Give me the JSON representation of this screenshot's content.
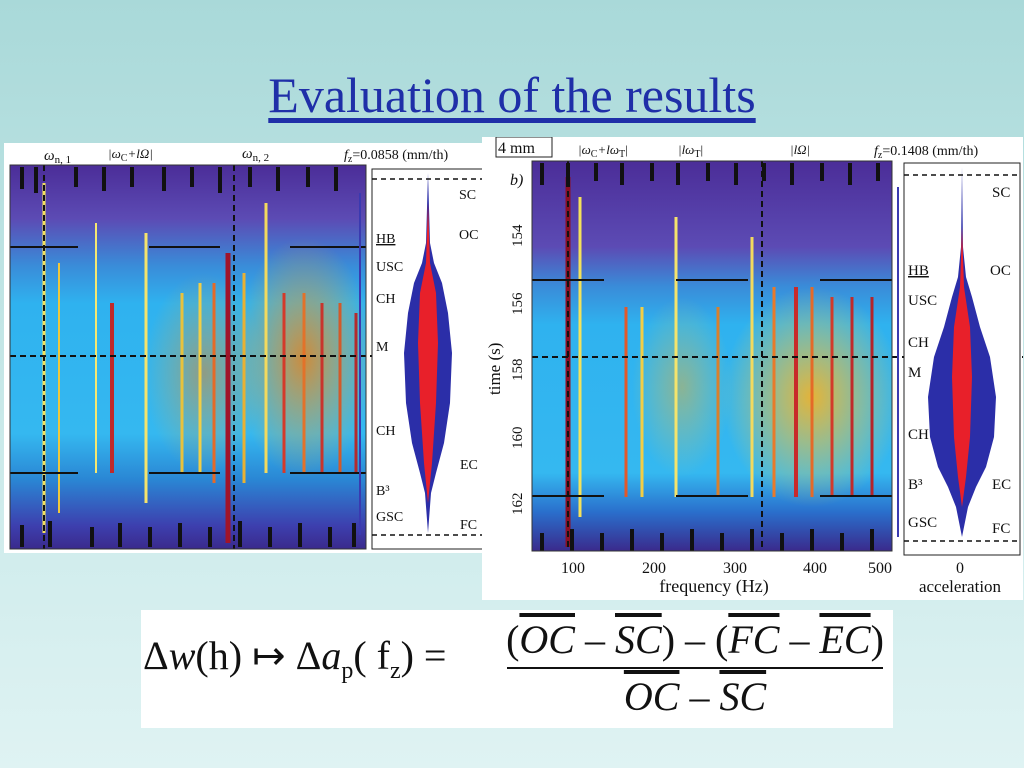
{
  "slide": {
    "title": "Evaluation of the results"
  },
  "panel_a": {
    "labels": {
      "omega1": "ω",
      "omega1_sub": "n, 1",
      "omega_c": "|ω",
      "omega_c_sub": "C",
      "omega_c_rest": "+lΩ|",
      "omega2": "ω",
      "omega2_sub": "n, 2",
      "fz_lhs": "f",
      "fz_sub": "z",
      "fz_value": "=0.0858 (mm/th)"
    },
    "stages": [
      "SC",
      "OC",
      "HB",
      "USC",
      "CH",
      "M",
      "CH",
      "EC",
      "B³",
      "GSC",
      "FC"
    ]
  },
  "panel_b": {
    "labels": {
      "scale": "4 mm",
      "b_label": "b)",
      "wc": "|ω",
      "wc_sub": "C",
      "wc_rest": "+lω",
      "wc_rest_sub": "T",
      "wc_end": "|",
      "lwt": "|lω",
      "lwt_sub": "T",
      "lwt_end": "|",
      "lOmega": "|lΩ|",
      "fz_lhs": "f",
      "fz_sub": "z",
      "fz_value": "=0.1408 (mm/th)"
    },
    "y_axis_label": "time (s)",
    "y_ticks": [
      "154",
      "156",
      "158",
      "160",
      "162"
    ],
    "x_axis_label": "frequency (Hz)",
    "x_ticks": [
      "100",
      "200",
      "300",
      "400",
      "500"
    ],
    "accel_tick": "0",
    "accel_label": "acceleration",
    "stages": [
      "SC",
      "HB",
      "OC",
      "USC",
      "CH",
      "M",
      "CH",
      "B³",
      "EC",
      "GSC",
      "FC"
    ]
  },
  "formula": {
    "lhs_delta_w": "Δ",
    "lhs_w": "w",
    "lhs_h": "(h)",
    "mapsto": "↦",
    "lhs_delta_a": "Δ",
    "lhs_a": "a",
    "lhs_a_sub": "p",
    "lhs_fz": "( f",
    "lhs_fz_sub": "z",
    "lhs_close": ") =",
    "num_open": "(",
    "oc": "OC",
    "minus": " – ",
    "sc": "SC",
    "num_mid": ") – (",
    "fc": "FC",
    "ec": "EC",
    "num_close": ")"
  }
}
